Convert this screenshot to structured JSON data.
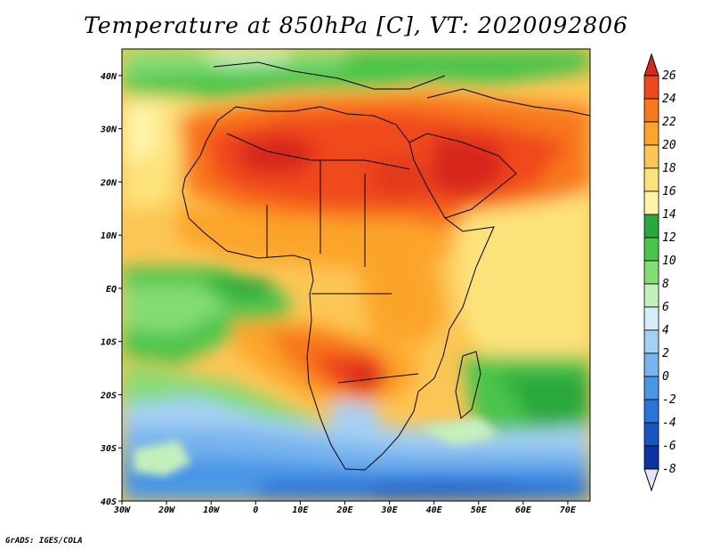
{
  "title": "Temperature at 850hPa [C], VT: 2020092806",
  "credit": "GrADS: IGES/COLA",
  "map": {
    "lon_range": [
      -30,
      75
    ],
    "lat_range": [
      -40,
      45
    ],
    "x_ticks": [
      "30W",
      "20W",
      "10W",
      "0",
      "10E",
      "20E",
      "30E",
      "40E",
      "50E",
      "60E",
      "70E"
    ],
    "y_ticks": [
      "40N",
      "30N",
      "20N",
      "10N",
      "EQ",
      "10S",
      "20S",
      "30S",
      "40S"
    ]
  },
  "colorbar": {
    "labels": [
      "26",
      "24",
      "22",
      "20",
      "18",
      "16",
      "14",
      "12",
      "10",
      "8",
      "6",
      "4",
      "2",
      "0",
      "-2",
      "-4",
      "-6",
      "-8"
    ],
    "colors": [
      "#d8281c",
      "#f0481e",
      "#f8781c",
      "#fca42c",
      "#fcc654",
      "#fde27c",
      "#fef4a8",
      "#29a83c",
      "#4cc44c",
      "#84dc74",
      "#c4f0bc",
      "#d4eef8",
      "#a4d0f4",
      "#78b4ee",
      "#4896e6",
      "#2a74d8",
      "#1854c0",
      "#0c34a0",
      "#0a1e78"
    ]
  }
}
